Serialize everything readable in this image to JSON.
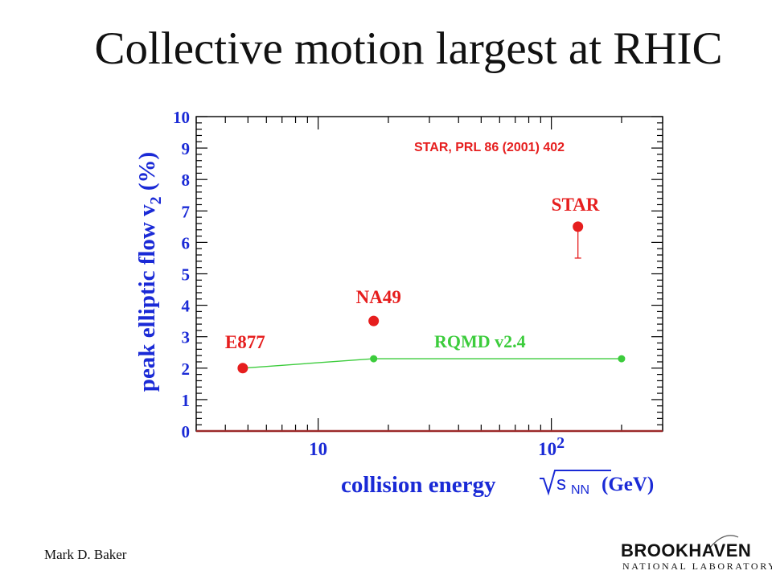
{
  "slide": {
    "title": "Collective motion largest at RHIC",
    "author": "Mark D. Baker",
    "logo": {
      "main": "BROOKHAVEN",
      "sub": "NATIONAL LABORATORY"
    }
  },
  "colors": {
    "axis_blue": "#1a2ad6",
    "data_red": "#e61e1e",
    "model_green": "#3ccc3c",
    "baseline": "#9c2a2a"
  },
  "chart_data": {
    "type": "scatter",
    "xscale": "log",
    "xlim": [
      3,
      300
    ],
    "ylim": [
      0,
      10
    ],
    "yticks": [
      0,
      1,
      2,
      3,
      4,
      5,
      6,
      7,
      8,
      9,
      10
    ],
    "xtick_labels": [
      {
        "value": 10,
        "label": "10",
        "sup": ""
      },
      {
        "value": 100,
        "label": "10",
        "sup": "2"
      }
    ],
    "ylabel": "peak elliptic flow  v",
    "ylabel_sub": "2",
    "ylabel_unit": " (%)",
    "xlabel": "collision energy",
    "xlabel_unit": "(GeV)",
    "xlabel_sqrt": "s",
    "xlabel_sqrt_sub": "NN",
    "annotation": "STAR, PRL 86 (2001) 402",
    "experiments": [
      {
        "name": "E877",
        "x": 4.75,
        "y": 2.0
      },
      {
        "name": "NA49",
        "x": 17.3,
        "y": 3.5
      },
      {
        "name": "STAR",
        "x": 130,
        "y": 6.5,
        "y_low": 5.5
      }
    ],
    "model": {
      "name": "RQMD v2.4",
      "points": [
        {
          "x": 4.75,
          "y": 2.0
        },
        {
          "x": 17.3,
          "y": 2.3
        },
        {
          "x": 200,
          "y": 2.3
        }
      ]
    }
  }
}
